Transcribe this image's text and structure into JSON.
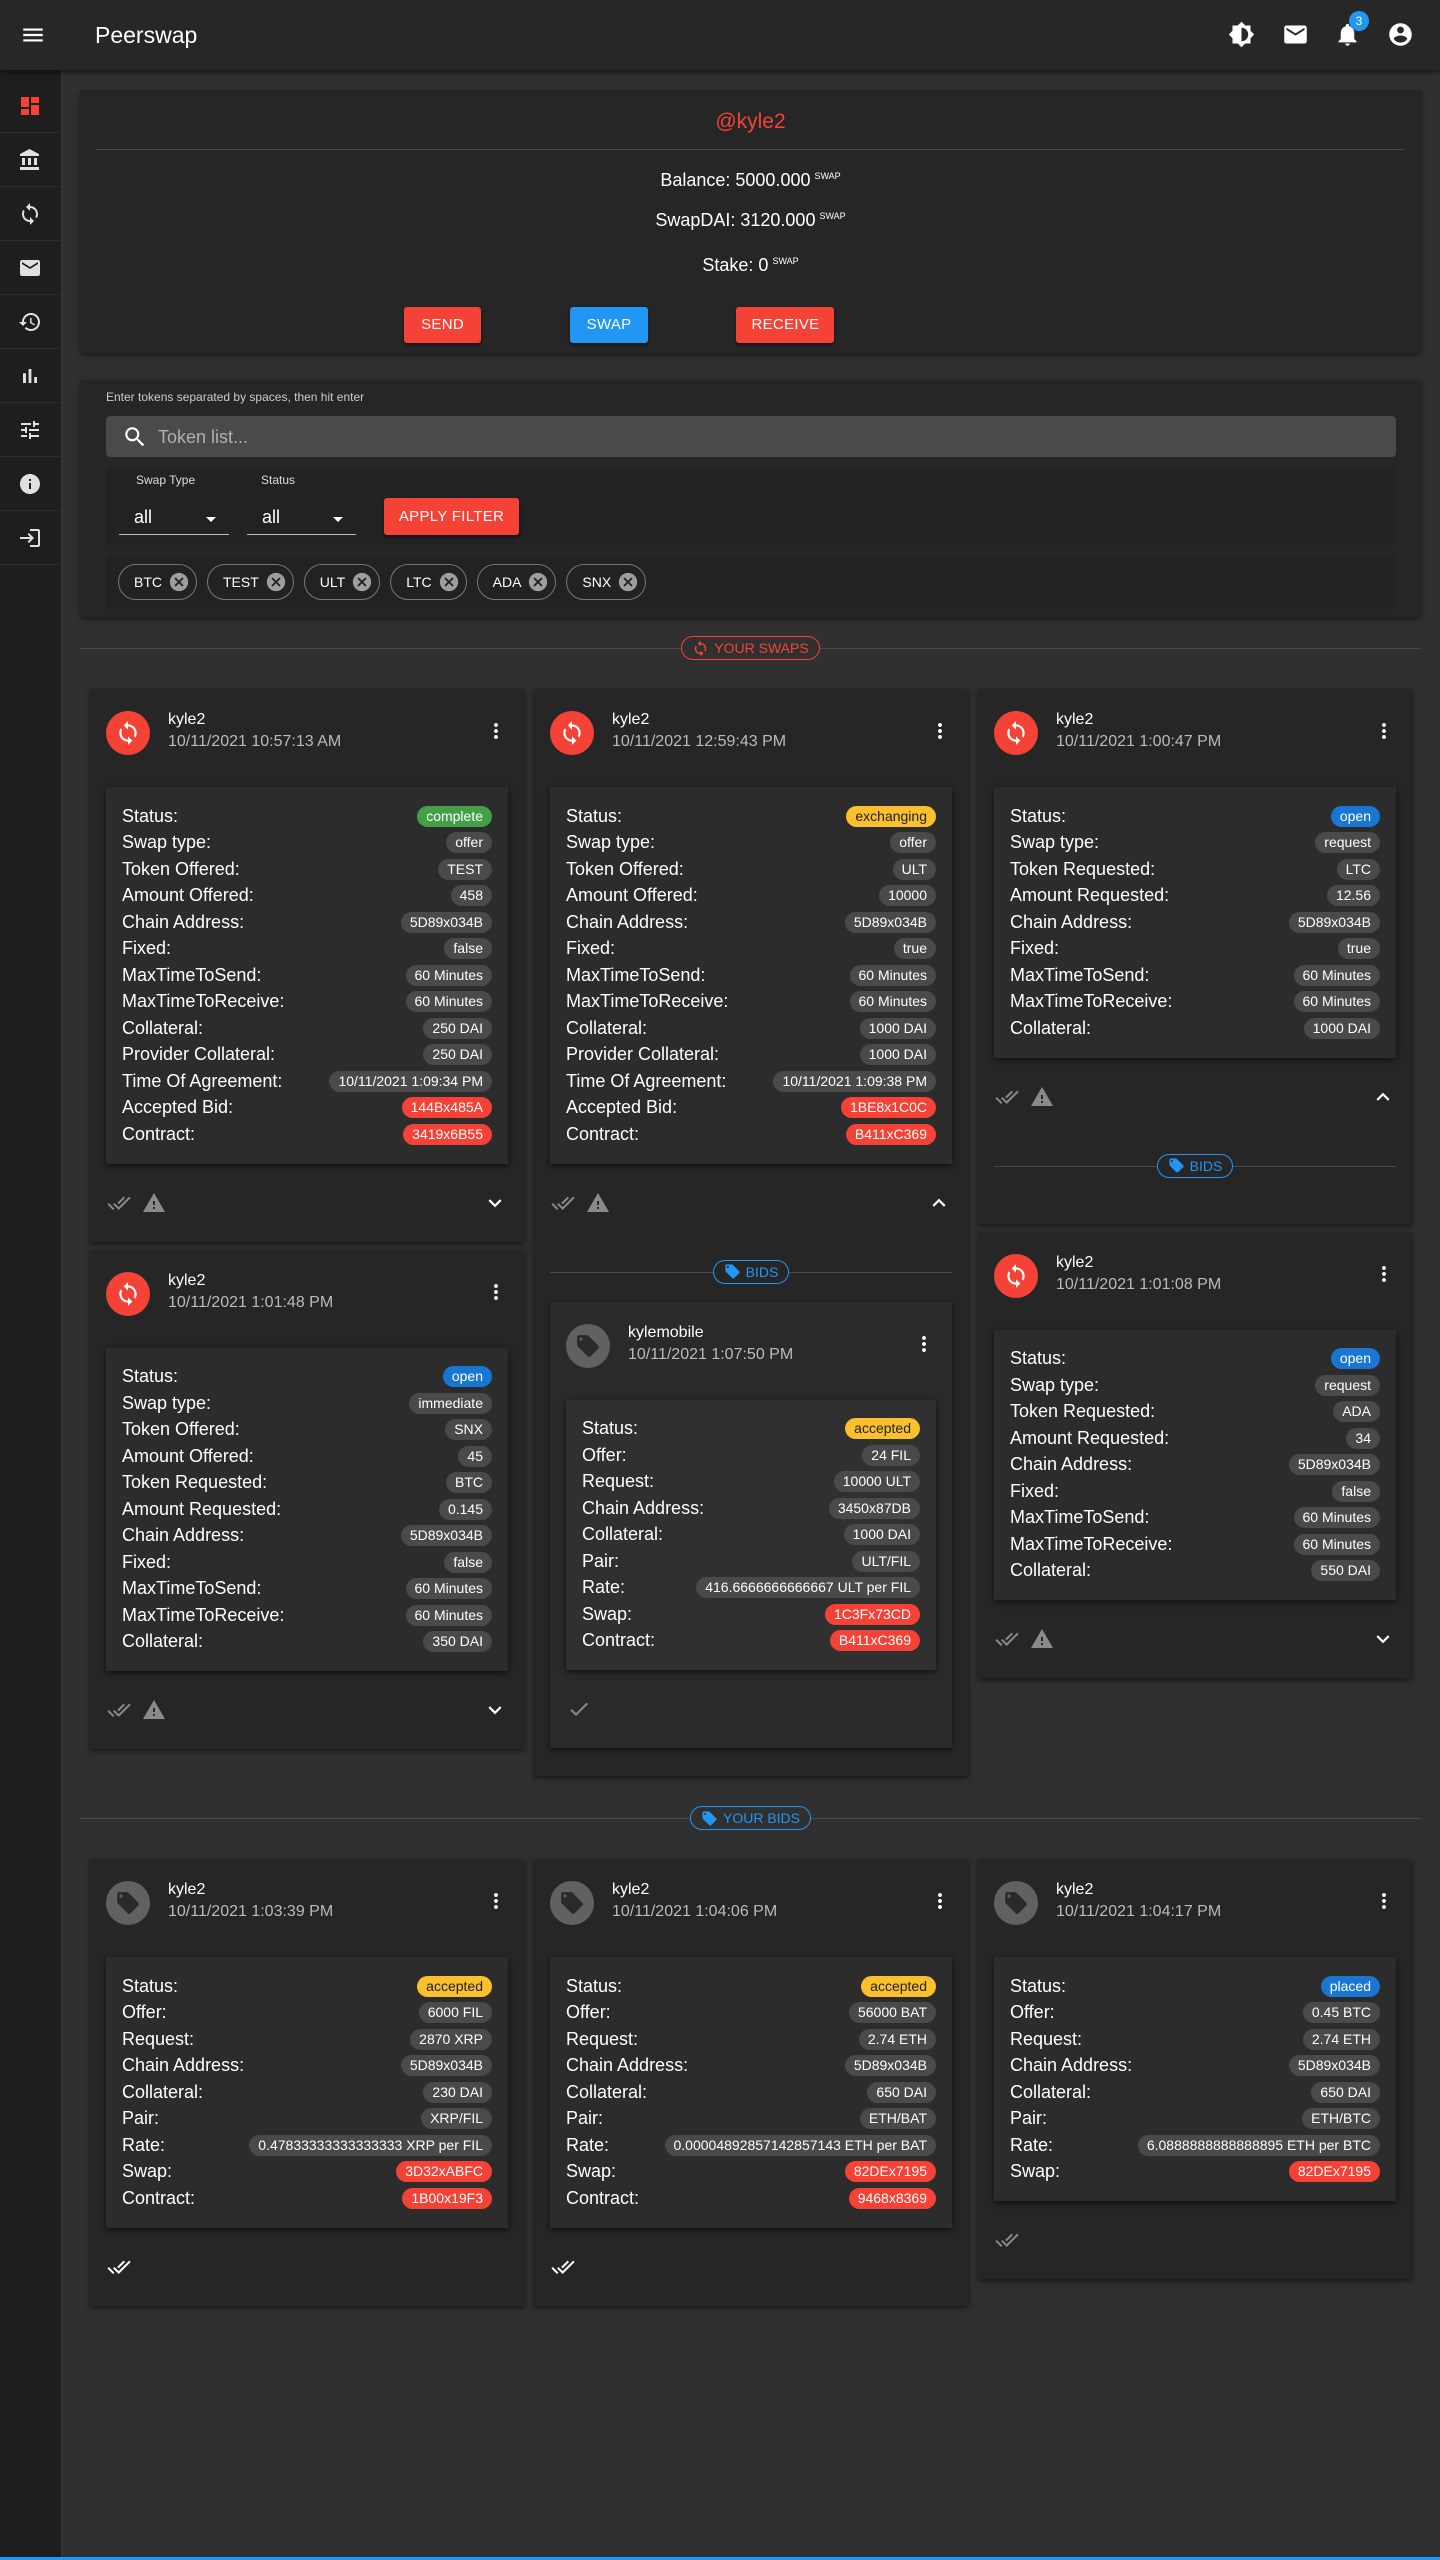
{
  "header": {
    "title": "Peerswap",
    "notifications": 3
  },
  "profile": {
    "username": "@kyle2",
    "lines": [
      {
        "text": "Balance: 5000.000",
        "unit": "SWAP"
      },
      {
        "text": "SwapDAI: 3120.000",
        "unit": "SWAP"
      },
      {
        "text": "Stake: 0",
        "unit": "SWAP"
      }
    ],
    "buttons": [
      {
        "label": "SEND",
        "color": "#f44336"
      },
      {
        "label": "SWAP",
        "color": "#2196f3"
      },
      {
        "label": "RECEIVE",
        "color": "#f44336"
      }
    ]
  },
  "filter": {
    "hint": "Enter tokens separated by spaces, then hit enter",
    "placeholder": "Token list...",
    "swap_type": {
      "label": "Swap Type",
      "value": "all"
    },
    "status": {
      "label": "Status",
      "value": "all"
    },
    "apply": "APPLY FILTER",
    "tokens": [
      "BTC",
      "TEST",
      "ULT",
      "LTC",
      "ADA",
      "SNX"
    ]
  },
  "your_swaps": {
    "label": "YOUR SWAPS",
    "columns": [
      [
        {
          "user": "kyle2",
          "date": "10/11/2021 10:57:13 AM",
          "fields": [
            {
              "label": "Status:",
              "value": "complete",
              "color": "#43a047"
            },
            {
              "label": "Swap type:",
              "value": "offer"
            },
            {
              "label": "Token Offered:",
              "value": "TEST"
            },
            {
              "label": "Amount Offered:",
              "value": "458"
            },
            {
              "label": "Chain Address:",
              "value": "5D89x034B"
            },
            {
              "label": "Fixed:",
              "value": "false"
            },
            {
              "label": "MaxTimeToSend:",
              "value": "60 Minutes"
            },
            {
              "label": "MaxTimeToReceive:",
              "value": "60 Minutes"
            },
            {
              "label": "Collateral:",
              "value": "250 DAI"
            },
            {
              "label": "Provider Collateral:",
              "value": "250 DAI"
            },
            {
              "label": "Time Of Agreement:",
              "value": "10/11/2021 1:09:34 PM"
            },
            {
              "label": "Accepted Bid:",
              "value": "144Bx485A",
              "color": "#f44336"
            },
            {
              "label": "Contract:",
              "value": "3419x6B55",
              "color": "#f44336"
            }
          ]
        },
        {
          "user": "kyle2",
          "date": "10/11/2021 1:01:48 PM",
          "fields": [
            {
              "label": "Status:",
              "value": "open",
              "color": "#1976d2"
            },
            {
              "label": "Swap type:",
              "value": "immediate"
            },
            {
              "label": "Token Offered:",
              "value": "SNX"
            },
            {
              "label": "Amount Offered:",
              "value": "45"
            },
            {
              "label": "Token Requested:",
              "value": "BTC"
            },
            {
              "label": "Amount Requested:",
              "value": "0.145"
            },
            {
              "label": "Chain Address:",
              "value": "5D89x034B"
            },
            {
              "label": "Fixed:",
              "value": "false"
            },
            {
              "label": "MaxTimeToSend:",
              "value": "60 Minutes"
            },
            {
              "label": "MaxTimeToReceive:",
              "value": "60 Minutes"
            },
            {
              "label": "Collateral:",
              "value": "350 DAI"
            }
          ]
        }
      ],
      [
        {
          "user": "kyle2",
          "date": "10/11/2021 12:59:43 PM",
          "fields": [
            {
              "label": "Status:",
              "value": "exchanging",
              "color": "#fbc02d"
            },
            {
              "label": "Swap type:",
              "value": "offer"
            },
            {
              "label": "Token Offered:",
              "value": "ULT"
            },
            {
              "label": "Amount Offered:",
              "value": "10000"
            },
            {
              "label": "Chain Address:",
              "value": "5D89x034B"
            },
            {
              "label": "Fixed:",
              "value": "true"
            },
            {
              "label": "MaxTimeToSend:",
              "value": "60 Minutes"
            },
            {
              "label": "MaxTimeToReceive:",
              "value": "60 Minutes"
            },
            {
              "label": "Collateral:",
              "value": "1000 DAI"
            },
            {
              "label": "Provider Collateral:",
              "value": "1000 DAI"
            },
            {
              "label": "Time Of Agreement:",
              "value": "10/11/2021 1:09:38 PM"
            },
            {
              "label": "Accepted Bid:",
              "value": "1BE8x1C0C",
              "color": "#f44336"
            },
            {
              "label": "Contract:",
              "value": "B411xC369",
              "color": "#f44336"
            }
          ],
          "bids_label": "BIDS",
          "bids": [
            {
              "user": "kylemobile",
              "date": "10/11/2021 1:07:50 PM",
              "fields": [
                {
                  "label": "Status:",
                  "value": "accepted",
                  "color": "#fbc02d"
                },
                {
                  "label": "Offer:",
                  "value": "24 FIL"
                },
                {
                  "label": "Request:",
                  "value": "10000 ULT"
                },
                {
                  "label": "Chain Address:",
                  "value": "3450x87DB"
                },
                {
                  "label": "Collateral:",
                  "value": "1000 DAI"
                },
                {
                  "label": "Pair:",
                  "value": "ULT/FIL"
                },
                {
                  "label": "Rate:",
                  "value": "416.6666666666667 ULT per FIL"
                },
                {
                  "label": "Swap:",
                  "value": "1C3Fx73CD",
                  "color": "#f44336"
                },
                {
                  "label": "Contract:",
                  "value": "B411xC369",
                  "color": "#f44336"
                }
              ]
            }
          ]
        }
      ],
      [
        {
          "user": "kyle2",
          "date": "10/11/2021 1:00:47 PM",
          "fields": [
            {
              "label": "Status:",
              "value": "open",
              "color": "#1976d2"
            },
            {
              "label": "Swap type:",
              "value": "request"
            },
            {
              "label": "Token Requested:",
              "value": "LTC"
            },
            {
              "label": "Amount Requested:",
              "value": "12.56"
            },
            {
              "label": "Chain Address:",
              "value": "5D89x034B"
            },
            {
              "label": "Fixed:",
              "value": "true"
            },
            {
              "label": "MaxTimeToSend:",
              "value": "60 Minutes"
            },
            {
              "label": "MaxTimeToReceive:",
              "value": "60 Minutes"
            },
            {
              "label": "Collateral:",
              "value": "1000 DAI"
            }
          ],
          "bids_label": "BIDS"
        },
        {
          "user": "kyle2",
          "date": "10/11/2021 1:01:08 PM",
          "fields": [
            {
              "label": "Status:",
              "value": "open",
              "color": "#1976d2"
            },
            {
              "label": "Swap type:",
              "value": "request"
            },
            {
              "label": "Token Requested:",
              "value": "ADA"
            },
            {
              "label": "Amount Requested:",
              "value": "34"
            },
            {
              "label": "Chain Address:",
              "value": "5D89x034B"
            },
            {
              "label": "Fixed:",
              "value": "false"
            },
            {
              "label": "MaxTimeToSend:",
              "value": "60 Minutes"
            },
            {
              "label": "MaxTimeToReceive:",
              "value": "60 Minutes"
            },
            {
              "label": "Collateral:",
              "value": "550 DAI"
            }
          ]
        }
      ]
    ]
  },
  "your_bids": {
    "label": "YOUR BIDS",
    "cards": [
      {
        "user": "kyle2",
        "date": "10/11/2021 1:03:39 PM",
        "fields": [
          {
            "label": "Status:",
            "value": "accepted",
            "color": "#fbc02d"
          },
          {
            "label": "Offer:",
            "value": "6000 FIL"
          },
          {
            "label": "Request:",
            "value": "2870 XRP"
          },
          {
            "label": "Chain Address:",
            "value": "5D89x034B"
          },
          {
            "label": "Collateral:",
            "value": "230 DAI"
          },
          {
            "label": "Pair:",
            "value": "XRP/FIL"
          },
          {
            "label": "Rate:",
            "value": "0.47833333333333333 XRP per FIL"
          },
          {
            "label": "Swap:",
            "value": "3D32xABFC",
            "color": "#f44336"
          },
          {
            "label": "Contract:",
            "value": "1B00x19F3",
            "color": "#f44336"
          }
        ]
      },
      {
        "user": "kyle2",
        "date": "10/11/2021 1:04:06 PM",
        "fields": [
          {
            "label": "Status:",
            "value": "accepted",
            "color": "#fbc02d"
          },
          {
            "label": "Offer:",
            "value": "56000 BAT"
          },
          {
            "label": "Request:",
            "value": "2.74 ETH"
          },
          {
            "label": "Chain Address:",
            "value": "5D89x034B"
          },
          {
            "label": "Collateral:",
            "value": "650 DAI"
          },
          {
            "label": "Pair:",
            "value": "ETH/BAT"
          },
          {
            "label": "Rate:",
            "value": "0.00004892857142857143 ETH per BAT"
          },
          {
            "label": "Swap:",
            "value": "82DEx7195",
            "color": "#f44336"
          },
          {
            "label": "Contract:",
            "value": "9468x8369",
            "color": "#f44336"
          }
        ]
      },
      {
        "user": "kyle2",
        "date": "10/11/2021 1:04:17 PM",
        "fields": [
          {
            "label": "Status:",
            "value": "placed",
            "color": "#1976d2"
          },
          {
            "label": "Offer:",
            "value": "0.45 BTC"
          },
          {
            "label": "Request:",
            "value": "2.74 ETH"
          },
          {
            "label": "Chain Address:",
            "value": "5D89x034B"
          },
          {
            "label": "Collateral:",
            "value": "650 DAI"
          },
          {
            "label": "Pair:",
            "value": "ETH/BTC"
          },
          {
            "label": "Rate:",
            "value": "6.0888888888888895 ETH per BTC"
          },
          {
            "label": "Swap:",
            "value": "82DEx7195",
            "color": "#f44336"
          }
        ]
      }
    ]
  }
}
